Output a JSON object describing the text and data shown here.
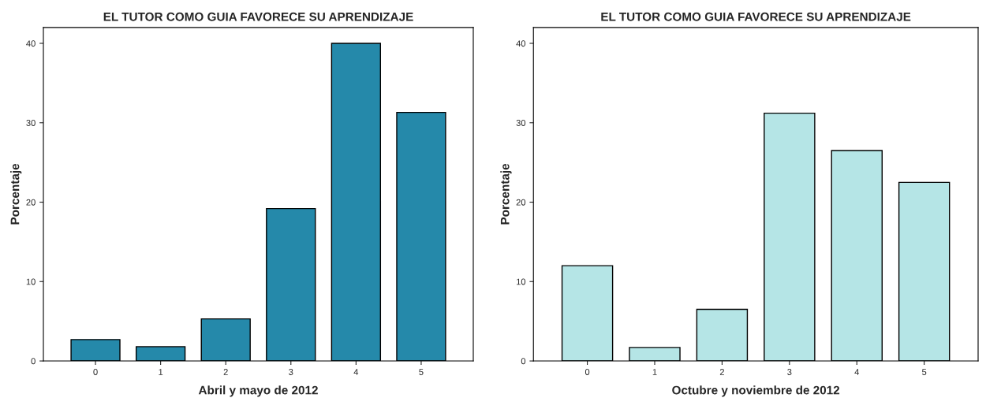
{
  "chart_data": [
    {
      "type": "bar",
      "title": "EL TUTOR COMO GUIA FAVORECE SU APRENDIZAJE",
      "xlabel": "Abril y mayo de 2012",
      "ylabel": "Porcentaje",
      "categories": [
        "0",
        "1",
        "2",
        "3",
        "4",
        "5"
      ],
      "values": [
        2.7,
        1.8,
        5.3,
        19.2,
        40.0,
        31.3
      ],
      "color": "#2589aa",
      "ylim": [
        0,
        42
      ],
      "yticks": [
        0,
        10,
        20,
        30,
        40
      ],
      "grid": false
    },
    {
      "type": "bar",
      "title": "EL TUTOR COMO GUIA FAVORECE SU APRENDIZAJE",
      "xlabel": "Octubre y noviembre de 2012",
      "ylabel": "Porcentaje",
      "categories": [
        "0",
        "1",
        "2",
        "3",
        "4",
        "5"
      ],
      "values": [
        12.0,
        1.7,
        6.5,
        31.2,
        26.5,
        22.5
      ],
      "color": "#b5e5e6",
      "ylim": [
        0,
        42
      ],
      "yticks": [
        0,
        10,
        20,
        30,
        40
      ],
      "grid": false
    }
  ]
}
